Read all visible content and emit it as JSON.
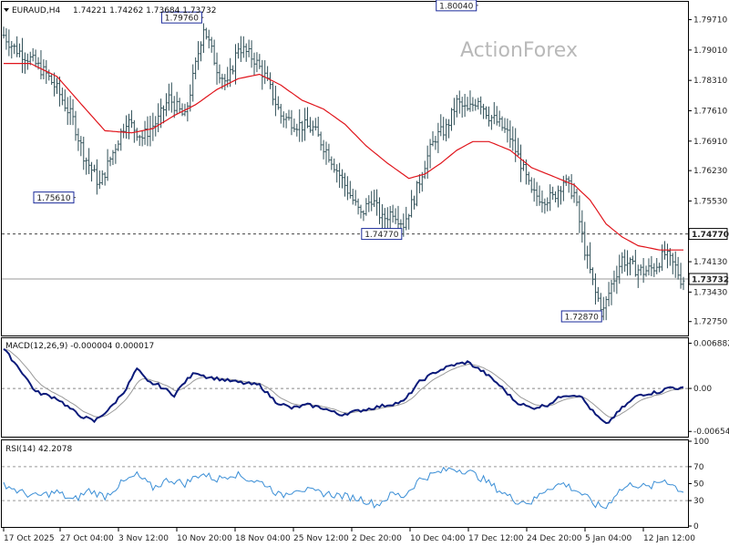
{
  "header": {
    "symbol": "EURAUD,H4",
    "ohlc": "1.74221 1.74262 1.73684 1.73732"
  },
  "watermark": "ActionForex",
  "colors": {
    "bars": "#2f4f57",
    "ma": "#e0141b",
    "macd": "#0a1a7a",
    "signal": "#9a9a9a",
    "rsi": "#3a8ed6",
    "label_border": "#1a2a9a"
  },
  "chart_data": [
    {
      "type": "ohlc",
      "name": "price",
      "ylim": [
        1.7245,
        1.801
      ],
      "y_ticks": [
        "1.79710",
        "1.79010",
        "1.78310",
        "1.77610",
        "1.76910",
        "1.76230",
        "1.75530",
        "1.74830",
        "1.74130",
        "1.73430",
        "1.72750"
      ],
      "y_tick_values": [
        1.7971,
        1.7901,
        1.7831,
        1.7761,
        1.7691,
        1.7623,
        1.7553,
        1.7483,
        1.7413,
        1.7343,
        1.7275
      ],
      "x_ticks": [
        "17 Oct 2025",
        "27 Oct 04:00",
        "3 Nov 12:00",
        "10 Nov 20:00",
        "18 Nov 04:00",
        "25 Nov 12:00",
        "2 Dec 20:00",
        "10 Dec 04:00",
        "17 Dec 12:00",
        "24 Dec 20:00",
        "5 Jan 04:00",
        "12 Jan 12:00"
      ],
      "annotations": [
        {
          "text": "1.79760",
          "value": 1.7976,
          "index": 75
        },
        {
          "text": "1.80040",
          "value": 1.8004,
          "index": 178
        },
        {
          "text": "1.75610",
          "value": 1.7561,
          "index": 27
        },
        {
          "text": "1.74770",
          "value": 1.7477,
          "index": 150
        },
        {
          "text": "1.72870",
          "value": 1.7287,
          "index": 225
        }
      ],
      "h_levels": [
        {
          "text": "1.74770",
          "value": 1.7477,
          "style": "dashed"
        },
        {
          "text": "1.73732",
          "value": 1.73732,
          "style": "solid"
        }
      ],
      "close_anchors": [
        [
          0,
          1.7935
        ],
        [
          4,
          1.7905
        ],
        [
          10,
          1.788
        ],
        [
          16,
          1.7845
        ],
        [
          20,
          1.781
        ],
        [
          26,
          1.774
        ],
        [
          30,
          1.766
        ],
        [
          36,
          1.759
        ],
        [
          40,
          1.765
        ],
        [
          46,
          1.774
        ],
        [
          52,
          1.77
        ],
        [
          58,
          1.774
        ],
        [
          62,
          1.779
        ],
        [
          68,
          1.7745
        ],
        [
          75,
          1.7955
        ],
        [
          80,
          1.786
        ],
        [
          84,
          1.782
        ],
        [
          88,
          1.791
        ],
        [
          94,
          1.788
        ],
        [
          98,
          1.784
        ],
        [
          104,
          1.775
        ],
        [
          110,
          1.773
        ],
        [
          116,
          1.772
        ],
        [
          122,
          1.766
        ],
        [
          128,
          1.759
        ],
        [
          134,
          1.752
        ],
        [
          138,
          1.756
        ],
        [
          142,
          1.751
        ],
        [
          146,
          1.753
        ],
        [
          150,
          1.75
        ],
        [
          154,
          1.756
        ],
        [
          158,
          1.764
        ],
        [
          162,
          1.77
        ],
        [
          166,
          1.772
        ],
        [
          170,
          1.778
        ],
        [
          174,
          1.776
        ],
        [
          178,
          1.779
        ],
        [
          182,
          1.775
        ],
        [
          186,
          1.773
        ],
        [
          190,
          1.77
        ],
        [
          194,
          1.764
        ],
        [
          198,
          1.757
        ],
        [
          202,
          1.756
        ],
        [
          206,
          1.756
        ],
        [
          210,
          1.76
        ],
        [
          214,
          1.757
        ],
        [
          218,
          1.744
        ],
        [
          222,
          1.734
        ],
        [
          225,
          1.73
        ],
        [
          228,
          1.736
        ],
        [
          232,
          1.742
        ],
        [
          236,
          1.74
        ],
        [
          240,
          1.739
        ],
        [
          244,
          1.74
        ],
        [
          248,
          1.743
        ],
        [
          252,
          1.74
        ],
        [
          254,
          1.7373
        ]
      ],
      "ma_anchors": [
        [
          0,
          1.787
        ],
        [
          10,
          1.787
        ],
        [
          20,
          1.784
        ],
        [
          30,
          1.777
        ],
        [
          38,
          1.7715
        ],
        [
          48,
          1.771
        ],
        [
          56,
          1.772
        ],
        [
          64,
          1.775
        ],
        [
          72,
          1.7775
        ],
        [
          80,
          1.781
        ],
        [
          88,
          1.7835
        ],
        [
          96,
          1.7845
        ],
        [
          104,
          1.782
        ],
        [
          112,
          1.7785
        ],
        [
          120,
          1.7765
        ],
        [
          128,
          1.773
        ],
        [
          136,
          1.768
        ],
        [
          144,
          1.764
        ],
        [
          152,
          1.7605
        ],
        [
          158,
          1.7615
        ],
        [
          164,
          1.764
        ],
        [
          170,
          1.767
        ],
        [
          176,
          1.769
        ],
        [
          182,
          1.769
        ],
        [
          190,
          1.767
        ],
        [
          198,
          1.763
        ],
        [
          206,
          1.761
        ],
        [
          214,
          1.759
        ],
        [
          220,
          1.7555
        ],
        [
          226,
          1.75
        ],
        [
          232,
          1.747
        ],
        [
          238,
          1.745
        ],
        [
          246,
          1.744
        ],
        [
          254,
          1.744
        ]
      ]
    },
    {
      "type": "line",
      "name": "MACD",
      "title": "MACD(12,26,9) -0.000004 0.000017",
      "ylim": [
        -0.0072,
        0.0075
      ],
      "y_ticks": [
        "0.006882",
        "0.00",
        "-0.006541"
      ],
      "y_tick_values": [
        0.006882,
        0.0,
        -0.006541
      ],
      "macd_anchors": [
        [
          0,
          0.006
        ],
        [
          6,
          0.003
        ],
        [
          12,
          -0.0005
        ],
        [
          20,
          -0.0015
        ],
        [
          28,
          -0.004
        ],
        [
          34,
          -0.005
        ],
        [
          40,
          -0.003
        ],
        [
          46,
          0.0
        ],
        [
          50,
          0.003
        ],
        [
          54,
          0.001
        ],
        [
          58,
          0.0005
        ],
        [
          64,
          -0.001
        ],
        [
          68,
          0.001
        ],
        [
          72,
          0.0025
        ],
        [
          76,
          0.0018
        ],
        [
          80,
          0.0015
        ],
        [
          84,
          0.0012
        ],
        [
          90,
          0.0008
        ],
        [
          96,
          0.0005
        ],
        [
          102,
          -0.002
        ],
        [
          108,
          -0.003
        ],
        [
          114,
          -0.0025
        ],
        [
          120,
          -0.003
        ],
        [
          126,
          -0.004
        ],
        [
          132,
          -0.0035
        ],
        [
          138,
          -0.003
        ],
        [
          144,
          -0.0025
        ],
        [
          150,
          -0.002
        ],
        [
          156,
          0.001
        ],
        [
          162,
          0.0025
        ],
        [
          168,
          0.0035
        ],
        [
          174,
          0.004
        ],
        [
          180,
          0.0025
        ],
        [
          186,
          0.0005
        ],
        [
          192,
          -0.002
        ],
        [
          198,
          -0.003
        ],
        [
          204,
          -0.0025
        ],
        [
          210,
          -0.001
        ],
        [
          216,
          -0.001
        ],
        [
          222,
          -0.004
        ],
        [
          226,
          -0.0055
        ],
        [
          232,
          -0.003
        ],
        [
          238,
          -0.001
        ],
        [
          246,
          -0.0005
        ],
        [
          250,
          0.0002
        ],
        [
          254,
          -1e-05
        ]
      ]
    },
    {
      "type": "line",
      "name": "RSI",
      "title": "RSI(14) 42.2078",
      "ylim": [
        0,
        100
      ],
      "y_ticks": [
        "100",
        "70",
        "50",
        "30",
        "0"
      ],
      "y_tick_values": [
        100,
        70,
        50,
        30,
        0
      ],
      "levels": [
        70,
        30
      ],
      "rsi_anchors": [
        [
          0,
          50
        ],
        [
          6,
          40
        ],
        [
          12,
          35
        ],
        [
          20,
          40
        ],
        [
          26,
          30
        ],
        [
          32,
          42
        ],
        [
          38,
          35
        ],
        [
          44,
          50
        ],
        [
          50,
          60
        ],
        [
          56,
          45
        ],
        [
          62,
          55
        ],
        [
          68,
          50
        ],
        [
          74,
          62
        ],
        [
          80,
          55
        ],
        [
          86,
          62
        ],
        [
          92,
          55
        ],
        [
          98,
          50
        ],
        [
          104,
          35
        ],
        [
          110,
          45
        ],
        [
          116,
          40
        ],
        [
          122,
          38
        ],
        [
          128,
          35
        ],
        [
          134,
          32
        ],
        [
          140,
          25
        ],
        [
          146,
          38
        ],
        [
          150,
          35
        ],
        [
          156,
          55
        ],
        [
          162,
          62
        ],
        [
          168,
          68
        ],
        [
          174,
          65
        ],
        [
          180,
          55
        ],
        [
          186,
          42
        ],
        [
          192,
          30
        ],
        [
          198,
          28
        ],
        [
          204,
          45
        ],
        [
          210,
          50
        ],
        [
          216,
          40
        ],
        [
          222,
          25
        ],
        [
          226,
          22
        ],
        [
          230,
          40
        ],
        [
          236,
          50
        ],
        [
          242,
          45
        ],
        [
          248,
          55
        ],
        [
          254,
          42
        ]
      ]
    }
  ]
}
